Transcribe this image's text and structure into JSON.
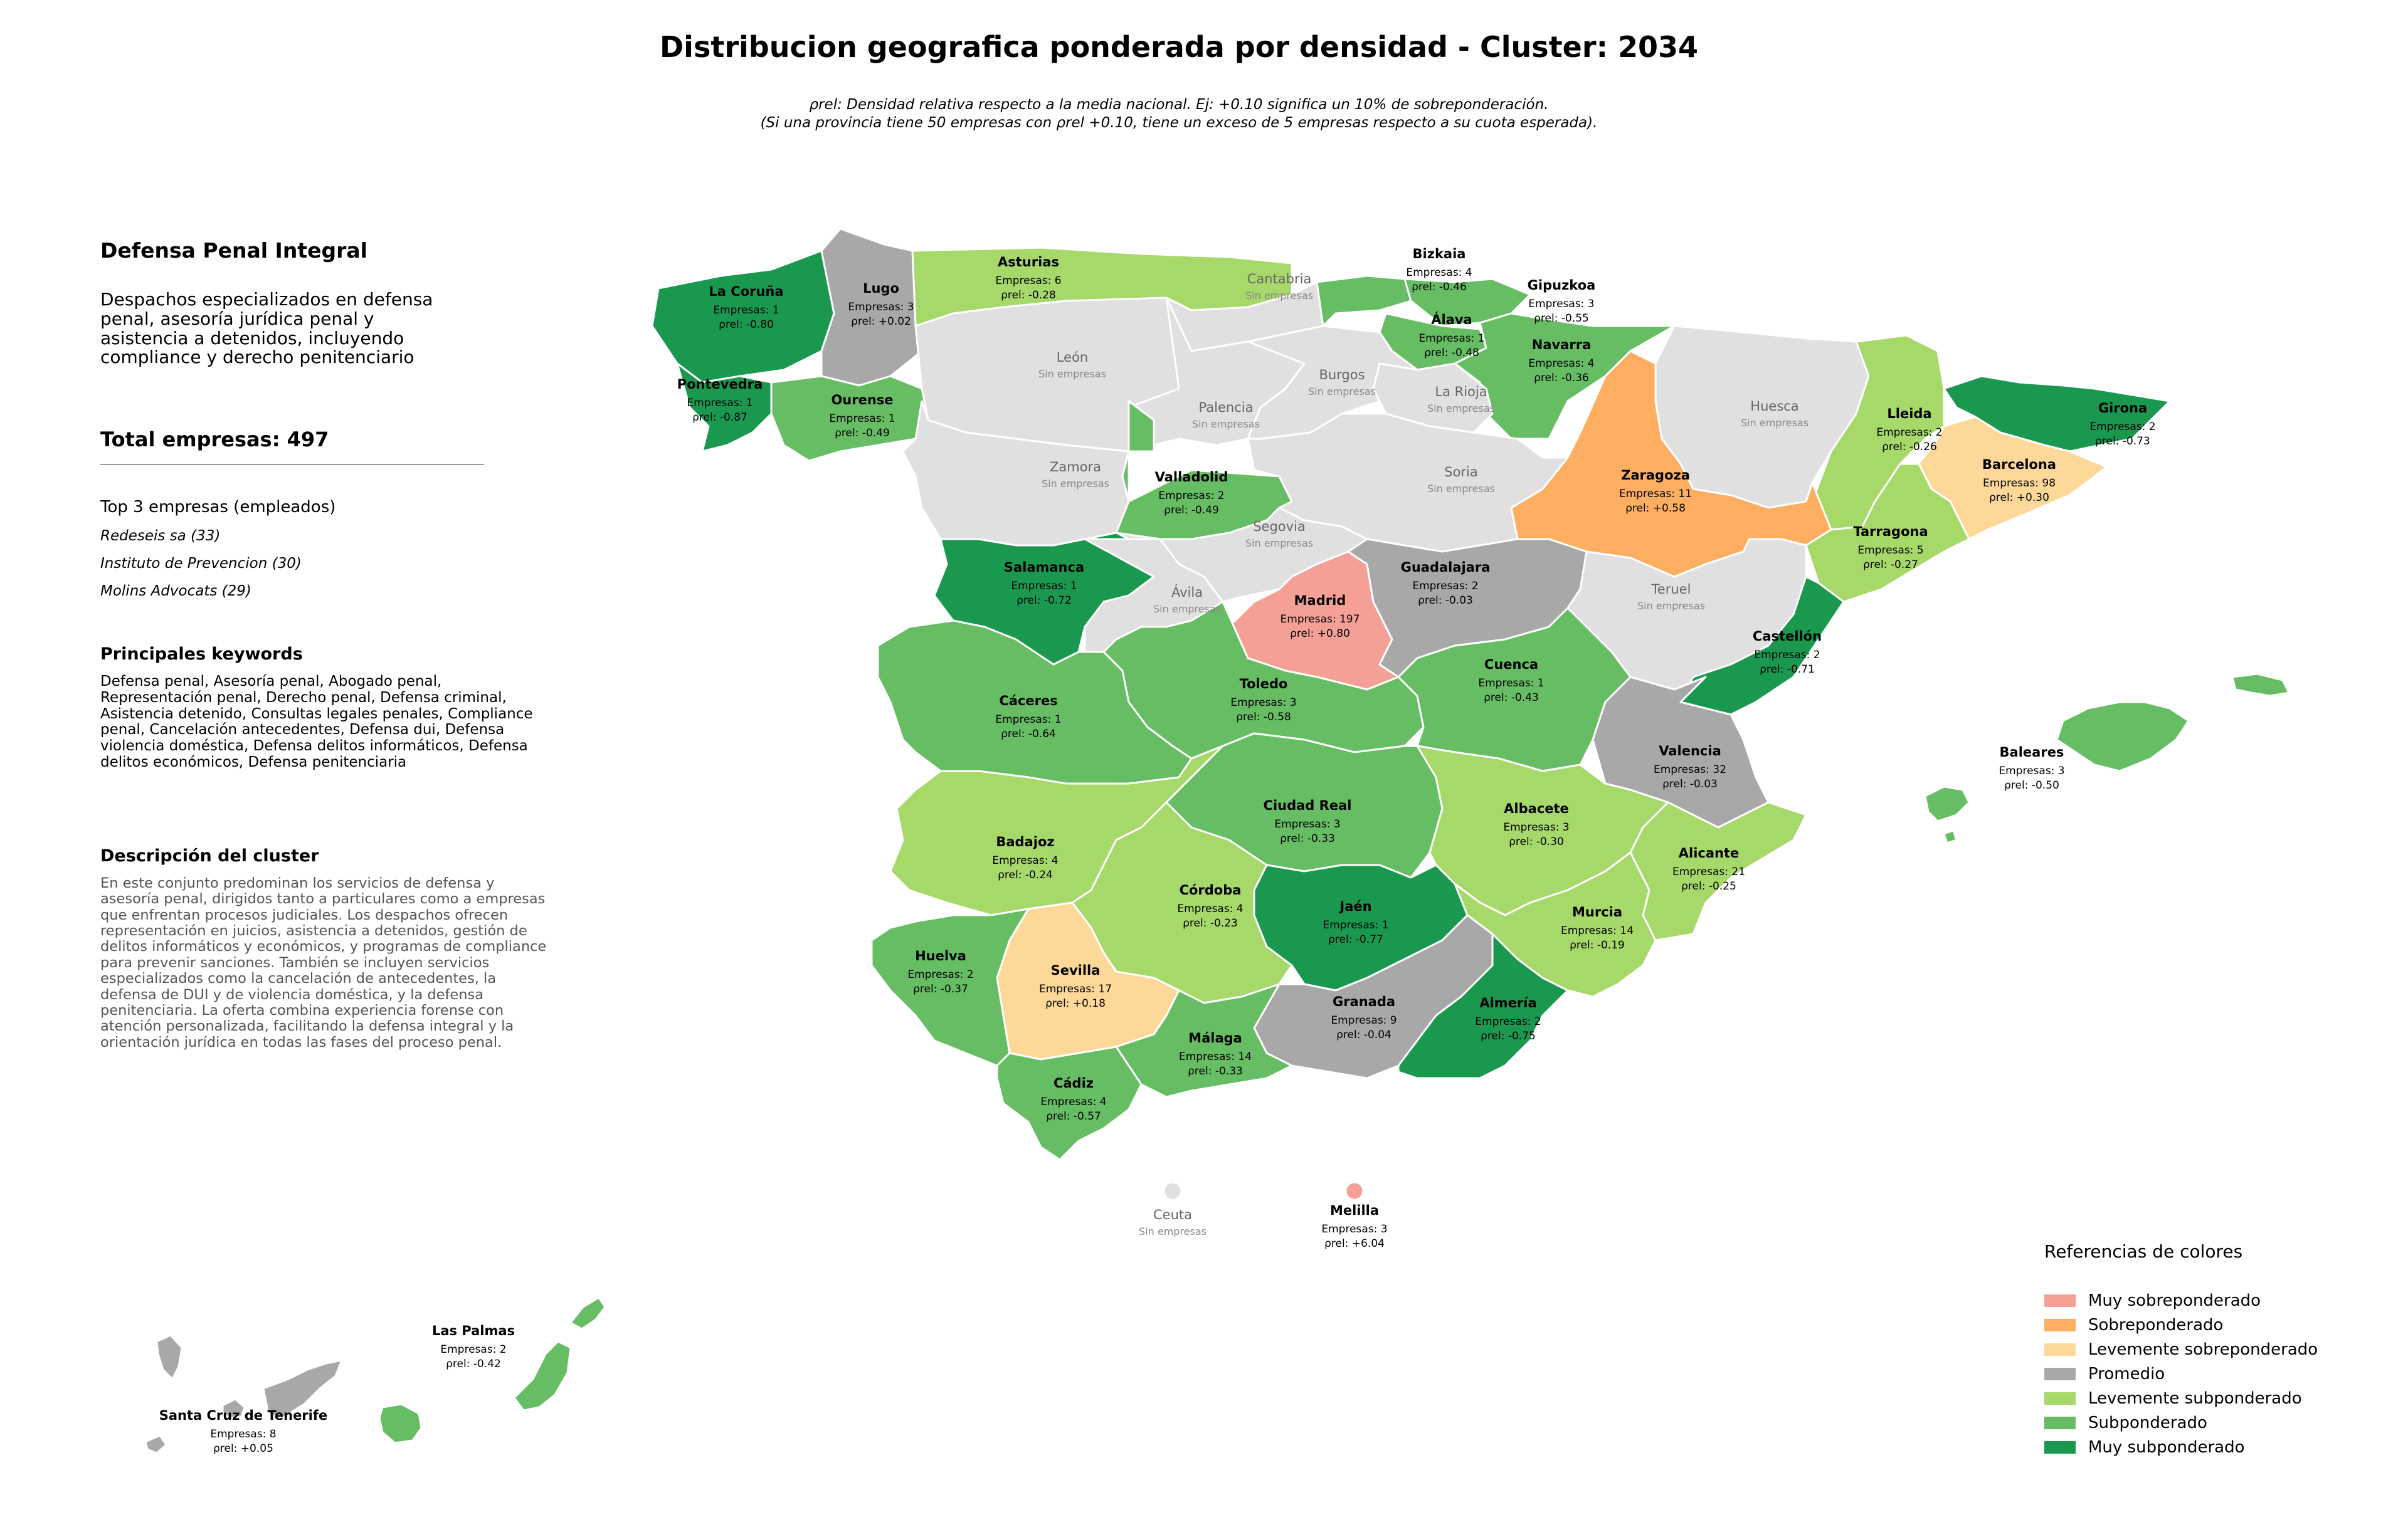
{
  "title": "Distribucion geografica ponderada por densidad - Cluster: 2034",
  "note_line1": "ρrel: Densidad relativa respecto a la media nacional. Ej: +0.10 significa un 10% de sobreponderación.",
  "note_line2": "(Si una provincia tiene 50 empresas con ρrel +0.10, tiene un exceso de 5 empresas respecto a su cuota esperada).",
  "sidebar": {
    "cluster_name": "Defensa Penal Integral",
    "summary": "Despachos especializados en defensa penal, asesoría jurídica penal y asistencia a detenidos, incluyendo compliance y derecho penitenciario",
    "total": "Total empresas: 497",
    "top3_title": "Top 3 empresas (empleados)",
    "top3": [
      "Redeseis sa (33)",
      "Instituto de Prevencion (30)",
      "Molins Advocats (29)"
    ],
    "keywords_title": "Principales keywords",
    "keywords": "Defensa penal, Asesoría penal, Abogado penal, Representación penal, Derecho penal, Defensa criminal, Asistencia detenido, Consultas legales penales, Compliance penal, Cancelación antecedentes, Defensa dui, Defensa violencia doméstica, Defensa delitos informáticos, Defensa delitos económicos, Defensa penitenciaria",
    "description_title": "Descripción del cluster",
    "description": "En este conjunto predominan los servicios de defensa y asesoría penal, dirigidos tanto a particulares como a empresas que enfrentan procesos judiciales. Los despachos ofrecen representación en juicios, asistencia a detenidos, gestión de delitos informáticos y económicos, y programas de compliance para prevenir sanciones. También se incluyen servicios especializados como la cancelación de antecedentes, la defensa de DUI y de violencia doméstica, y la defensa penitenciaria. La oferta combina experiencia forense con atención personalizada, facilitando la defensa integral y la orientación jurídica en todas las fases del proceso penal."
  },
  "colors": {
    "muy_sobre": "#f4a097",
    "sobre": "#fdae61",
    "lev_sobre": "#fed898",
    "promedio": "#a8a8a8",
    "lev_sub": "#a6d96a",
    "sub": "#66bd63",
    "muy_sub": "#1a9850",
    "none": "#e0e0e0"
  },
  "legend": {
    "title": "Referencias de colores",
    "items": [
      {
        "label": "Muy sobreponderado",
        "color": "#f4a097"
      },
      {
        "label": "Sobreponderado",
        "color": "#fdae61"
      },
      {
        "label": "Levemente sobreponderado",
        "color": "#fed898"
      },
      {
        "label": "Promedio",
        "color": "#a8a8a8"
      },
      {
        "label": "Levemente subponderado",
        "color": "#a6d96a"
      },
      {
        "label": "Subponderado",
        "color": "#66bd63"
      },
      {
        "label": "Muy subponderado",
        "color": "#1a9850"
      }
    ]
  },
  "provinces": [
    {
      "name": "La Coruña",
      "count": "Empresas: 1",
      "rho": "ρrel: -0.80"
    },
    {
      "name": "Lugo",
      "count": "Empresas: 3",
      "rho": "ρrel: +0.02"
    },
    {
      "name": "Asturias",
      "count": "Empresas: 6",
      "rho": "ρrel: -0.28"
    },
    {
      "name": "Cantabria",
      "none": "Sin empresas"
    },
    {
      "name": "Bizkaia",
      "count": "Empresas: 4",
      "rho": "ρrel: -0.46"
    },
    {
      "name": "Gipuzkoa",
      "count": "Empresas: 3",
      "rho": "ρrel: -0.55"
    },
    {
      "name": "Álava",
      "count": "Empresas: 1",
      "rho": "ρrel: -0.48"
    },
    {
      "name": "Navarra",
      "count": "Empresas: 4",
      "rho": "ρrel: -0.36"
    },
    {
      "name": "Pontevedra",
      "count": "Empresas: 1",
      "rho": "ρrel: -0.87"
    },
    {
      "name": "Ourense",
      "count": "Empresas: 1",
      "rho": "ρrel: -0.49"
    },
    {
      "name": "León",
      "none": "Sin empresas"
    },
    {
      "name": "Palencia",
      "none": "Sin empresas"
    },
    {
      "name": "Burgos",
      "none": "Sin empresas"
    },
    {
      "name": "La Rioja",
      "none": "Sin empresas"
    },
    {
      "name": "Huesca",
      "none": "Sin empresas"
    },
    {
      "name": "Lleida",
      "count": "Empresas: 2",
      "rho": "ρrel: -0.26"
    },
    {
      "name": "Girona",
      "count": "Empresas: 2",
      "rho": "ρrel: -0.73"
    },
    {
      "name": "Barcelona",
      "count": "Empresas: 98",
      "rho": "ρrel: +0.30"
    },
    {
      "name": "Zaragoza",
      "count": "Empresas: 11",
      "rho": "ρrel: +0.58"
    },
    {
      "name": "Zamora",
      "none": "Sin empresas"
    },
    {
      "name": "Valladolid",
      "count": "Empresas: 2",
      "rho": "ρrel: -0.49"
    },
    {
      "name": "Soria",
      "none": "Sin empresas"
    },
    {
      "name": "Tarragona",
      "count": "Empresas: 5",
      "rho": "ρrel: -0.27"
    },
    {
      "name": "Salamanca",
      "count": "Empresas: 1",
      "rho": "ρrel: -0.72"
    },
    {
      "name": "Segovia",
      "none": "Sin empresas"
    },
    {
      "name": "Ávila",
      "none": "Sin empresas"
    },
    {
      "name": "Madrid",
      "count": "Empresas: 197",
      "rho": "ρrel: +0.80"
    },
    {
      "name": "Guadalajara",
      "count": "Empresas: 2",
      "rho": "ρrel: -0.03"
    },
    {
      "name": "Teruel",
      "none": "Sin empresas"
    },
    {
      "name": "Castellón",
      "count": "Empresas: 2",
      "rho": "ρrel: -0.71"
    },
    {
      "name": "Cáceres",
      "count": "Empresas: 1",
      "rho": "ρrel: -0.64"
    },
    {
      "name": "Toledo",
      "count": "Empresas: 3",
      "rho": "ρrel: -0.58"
    },
    {
      "name": "Cuenca",
      "count": "Empresas: 1",
      "rho": "ρrel: -0.43"
    },
    {
      "name": "Valencia",
      "count": "Empresas: 32",
      "rho": "ρrel: -0.03"
    },
    {
      "name": "Baleares",
      "count": "Empresas: 3",
      "rho": "ρrel: -0.50"
    },
    {
      "name": "Badajoz",
      "count": "Empresas: 4",
      "rho": "ρrel: -0.24"
    },
    {
      "name": "Ciudad Real",
      "count": "Empresas: 3",
      "rho": "ρrel: -0.33"
    },
    {
      "name": "Albacete",
      "count": "Empresas: 3",
      "rho": "ρrel: -0.30"
    },
    {
      "name": "Alicante",
      "count": "Empresas: 21",
      "rho": "ρrel: -0.25"
    },
    {
      "name": "Córdoba",
      "count": "Empresas: 4",
      "rho": "ρrel: -0.23"
    },
    {
      "name": "Jaén",
      "count": "Empresas: 1",
      "rho": "ρrel: -0.77"
    },
    {
      "name": "Murcia",
      "count": "Empresas: 14",
      "rho": "ρrel: -0.19"
    },
    {
      "name": "Huelva",
      "count": "Empresas: 2",
      "rho": "ρrel: -0.37"
    },
    {
      "name": "Sevilla",
      "count": "Empresas: 17",
      "rho": "ρrel: +0.18"
    },
    {
      "name": "Granada",
      "count": "Empresas: 9",
      "rho": "ρrel: -0.04"
    },
    {
      "name": "Almería",
      "count": "Empresas: 2",
      "rho": "ρrel: -0.75"
    },
    {
      "name": "Málaga",
      "count": "Empresas: 14",
      "rho": "ρrel: -0.33"
    },
    {
      "name": "Cádiz",
      "count": "Empresas: 4",
      "rho": "ρrel: -0.57"
    },
    {
      "name": "Ceuta",
      "none": "Sin empresas"
    },
    {
      "name": "Melilla",
      "count": "Empresas: 3",
      "rho": "ρrel: +6.04"
    },
    {
      "name": "Las Palmas",
      "count": "Empresas: 2",
      "rho": "ρrel: -0.42"
    },
    {
      "name": "Santa Cruz de Tenerife",
      "count": "Empresas: 8",
      "rho": "ρrel: +0.05"
    }
  ]
}
